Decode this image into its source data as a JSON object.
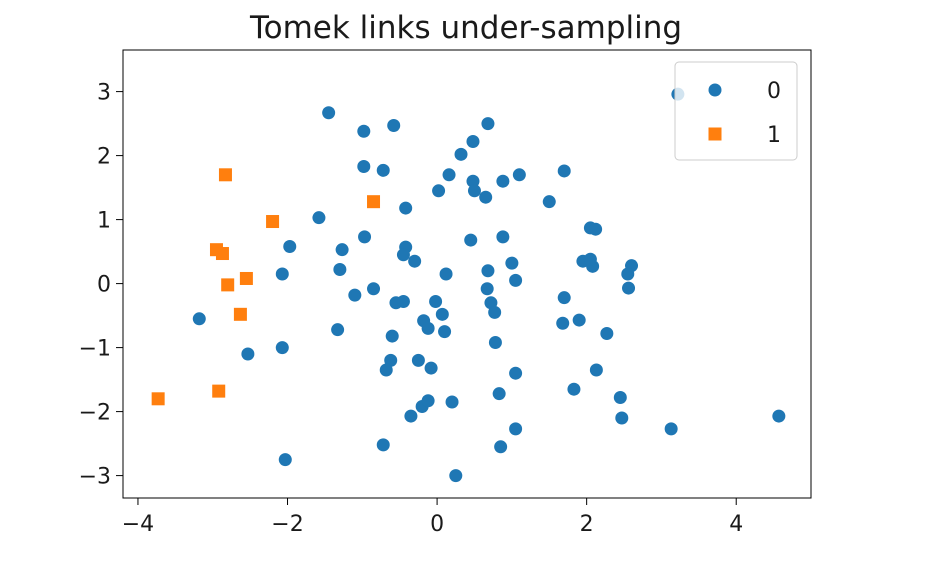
{
  "chart_data": {
    "type": "scatter",
    "title": "Tomek links under-sampling",
    "xlabel": "",
    "ylabel": "",
    "xlim": [
      -4.2,
      5.0
    ],
    "ylim": [
      -3.35,
      3.65
    ],
    "xticks": [
      -4,
      -2,
      0,
      2,
      4
    ],
    "yticks": [
      3,
      2,
      1,
      0,
      -1,
      -2,
      -3
    ],
    "xtick_labels": [
      "−4",
      "−2",
      "0",
      "2",
      "4"
    ],
    "ytick_labels": [
      "3",
      "2",
      "1",
      "0",
      "−1",
      "−2",
      "−3"
    ],
    "grid": false,
    "legend": {
      "position": "top-right"
    },
    "series": [
      {
        "name": "0",
        "marker": "circle",
        "color": "#1f77b4",
        "points": [
          [
            -1.45,
            2.67
          ],
          [
            -0.58,
            2.47
          ],
          [
            -0.98,
            2.38
          ],
          [
            0.68,
            2.5
          ],
          [
            0.48,
            2.22
          ],
          [
            0.32,
            2.02
          ],
          [
            -0.98,
            1.83
          ],
          [
            -0.72,
            1.77
          ],
          [
            0.16,
            1.7
          ],
          [
            1.1,
            1.7
          ],
          [
            1.7,
            1.76
          ],
          [
            0.48,
            1.6
          ],
          [
            0.88,
            1.6
          ],
          [
            0.02,
            1.45
          ],
          [
            0.5,
            1.45
          ],
          [
            0.65,
            1.35
          ],
          [
            1.5,
            1.28
          ],
          [
            -0.42,
            1.18
          ],
          [
            -1.58,
            1.03
          ],
          [
            -1.97,
            0.58
          ],
          [
            -1.27,
            0.53
          ],
          [
            -0.97,
            0.73
          ],
          [
            -0.42,
            0.57
          ],
          [
            -0.45,
            0.45
          ],
          [
            -0.3,
            0.35
          ],
          [
            0.45,
            0.68
          ],
          [
            0.88,
            0.73
          ],
          [
            2.05,
            0.87
          ],
          [
            2.12,
            0.85
          ],
          [
            1.95,
            0.35
          ],
          [
            2.08,
            0.27
          ],
          [
            2.05,
            0.38
          ],
          [
            2.6,
            0.28
          ],
          [
            2.55,
            0.15
          ],
          [
            1.0,
            0.32
          ],
          [
            0.68,
            0.2
          ],
          [
            1.05,
            0.05
          ],
          [
            0.12,
            0.15
          ],
          [
            -2.07,
            0.15
          ],
          [
            -1.3,
            0.22
          ],
          [
            -0.85,
            -0.08
          ],
          [
            -1.1,
            -0.18
          ],
          [
            -0.55,
            -0.3
          ],
          [
            -0.45,
            -0.28
          ],
          [
            -0.02,
            -0.28
          ],
          [
            0.67,
            -0.08
          ],
          [
            0.72,
            -0.3
          ],
          [
            0.77,
            -0.45
          ],
          [
            1.7,
            -0.22
          ],
          [
            1.68,
            -0.62
          ],
          [
            1.9,
            -0.57
          ],
          [
            2.56,
            -0.07
          ],
          [
            -3.18,
            -0.55
          ],
          [
            -1.33,
            -0.72
          ],
          [
            -0.6,
            -0.82
          ],
          [
            -0.18,
            -0.58
          ],
          [
            -0.12,
            -0.7
          ],
          [
            0.07,
            -0.48
          ],
          [
            0.1,
            -0.75
          ],
          [
            0.78,
            -0.92
          ],
          [
            2.27,
            -0.78
          ],
          [
            -2.53,
            -1.1
          ],
          [
            -2.07,
            -1.0
          ],
          [
            -0.62,
            -1.2
          ],
          [
            -0.68,
            -1.35
          ],
          [
            -0.25,
            -1.2
          ],
          [
            -0.08,
            -1.32
          ],
          [
            1.05,
            -1.4
          ],
          [
            2.13,
            -1.35
          ],
          [
            0.83,
            -1.72
          ],
          [
            1.83,
            -1.65
          ],
          [
            2.45,
            -1.78
          ],
          [
            -0.35,
            -2.07
          ],
          [
            -0.2,
            -1.92
          ],
          [
            -0.12,
            -1.83
          ],
          [
            0.2,
            -1.85
          ],
          [
            2.47,
            -2.1
          ],
          [
            1.05,
            -2.27
          ],
          [
            3.13,
            -2.27
          ],
          [
            4.57,
            -2.07
          ],
          [
            -0.72,
            -2.52
          ],
          [
            0.85,
            -2.55
          ],
          [
            -2.03,
            -2.75
          ],
          [
            0.25,
            -3.0
          ],
          [
            3.22,
            2.96
          ]
        ]
      },
      {
        "name": "1",
        "marker": "square",
        "color": "#ff7f0e",
        "points": [
          [
            -2.83,
            1.7
          ],
          [
            -0.85,
            1.28
          ],
          [
            -2.2,
            0.97
          ],
          [
            -2.95,
            0.53
          ],
          [
            -2.87,
            0.47
          ],
          [
            -2.55,
            0.08
          ],
          [
            -2.8,
            -0.02
          ],
          [
            -2.63,
            -0.48
          ],
          [
            -3.73,
            -1.8
          ],
          [
            -2.92,
            -1.68
          ]
        ]
      }
    ]
  }
}
